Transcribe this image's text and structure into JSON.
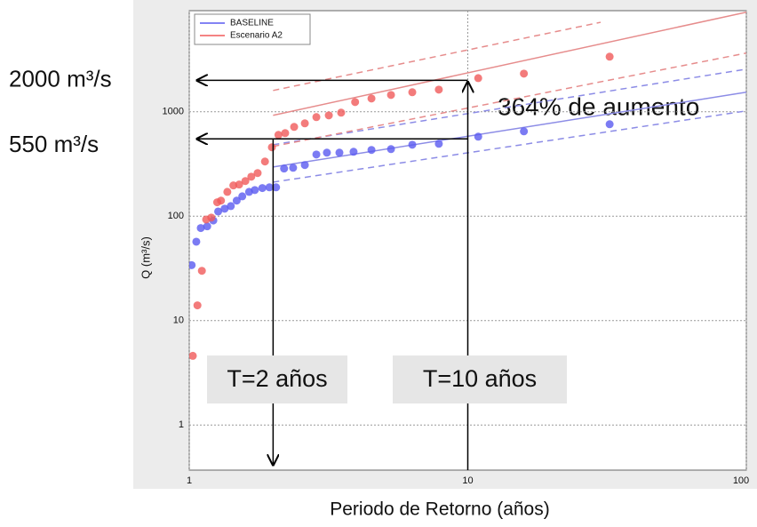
{
  "chart_data": {
    "type": "scatter",
    "x_label": "Periodo de Retorno (años)",
    "y_label": "Q (m³/s)",
    "xlim": [
      1,
      100
    ],
    "ylim": [
      0.37,
      9300
    ],
    "xticks": [
      1,
      10,
      100
    ],
    "yticks": [
      1,
      10,
      100,
      1000
    ],
    "log_x": true,
    "log_y": true,
    "grid": true,
    "legend": "upper left",
    "series": [
      {
        "name": "BASELINE",
        "color": "#5a5af0",
        "x": [
          1.02,
          1.06,
          1.1,
          1.16,
          1.22,
          1.27,
          1.34,
          1.41,
          1.48,
          1.55,
          1.64,
          1.72,
          1.83,
          1.94,
          2.05,
          2.19,
          2.36,
          2.6,
          2.86,
          3.12,
          3.46,
          3.89,
          4.51,
          5.3,
          6.32,
          7.87,
          10.9,
          15.9,
          32.3
        ],
        "values": [
          34,
          57,
          77,
          80,
          91,
          111,
          118,
          125,
          141,
          155,
          171,
          178,
          186,
          189,
          189,
          286,
          291,
          309,
          390,
          406,
          406,
          414,
          431,
          439,
          484,
          494,
          578,
          650,
          760
        ]
      },
      {
        "name": "Escenario A2",
        "color": "#f05a5a",
        "x": [
          1.03,
          1.07,
          1.11,
          1.15,
          1.2,
          1.26,
          1.3,
          1.37,
          1.44,
          1.51,
          1.59,
          1.67,
          1.76,
          1.87,
          1.98,
          2.09,
          2.21,
          2.38,
          2.6,
          2.86,
          3.17,
          3.51,
          3.94,
          4.51,
          5.3,
          6.32,
          7.87,
          10.9,
          15.9,
          32.3
        ],
        "values": [
          4.6,
          14,
          30,
          93,
          97,
          136,
          141,
          171,
          197,
          201,
          217,
          239,
          259,
          334,
          457,
          601,
          625,
          717,
          775,
          889,
          924,
          981,
          1240,
          1340,
          1450,
          1540,
          1630,
          2100,
          2320,
          3370
        ]
      }
    ],
    "fits": [
      {
        "color": "#8c8ce6",
        "dashed": false,
        "x": [
          2,
          100
        ],
        "values": [
          296,
          1540
        ]
      },
      {
        "color": "#8c8ce6",
        "dashed": true,
        "x": [
          2,
          100
        ],
        "values": [
          484,
          2560
        ]
      },
      {
        "color": "#8c8ce6",
        "dashed": true,
        "x": [
          2,
          100
        ],
        "values": [
          212,
          1020
        ]
      },
      {
        "color": "#e68c8c",
        "dashed": false,
        "x": [
          2,
          100
        ],
        "values": [
          925,
          9000
        ]
      },
      {
        "color": "#e68c8c",
        "dashed": true,
        "x": [
          2,
          30
        ],
        "values": [
          1600,
          7200
        ]
      },
      {
        "color": "#e68c8c",
        "dashed": true,
        "x": [
          2,
          100
        ],
        "values": [
          466,
          3650
        ]
      }
    ],
    "h_lines": [
      {
        "label": "2000 m³/s",
        "value": 2000,
        "to_x": 10
      },
      {
        "label": "550 m³/s",
        "value": 550,
        "to_x": 10
      }
    ],
    "v_lines": [
      {
        "label": "T=2 años",
        "value": 2,
        "from_y": 550,
        "arrow": "down"
      },
      {
        "label": "T=10 años",
        "value": 10,
        "from_y": 2000,
        "arrow": "up"
      }
    ],
    "annotation": "364% de aumento"
  }
}
